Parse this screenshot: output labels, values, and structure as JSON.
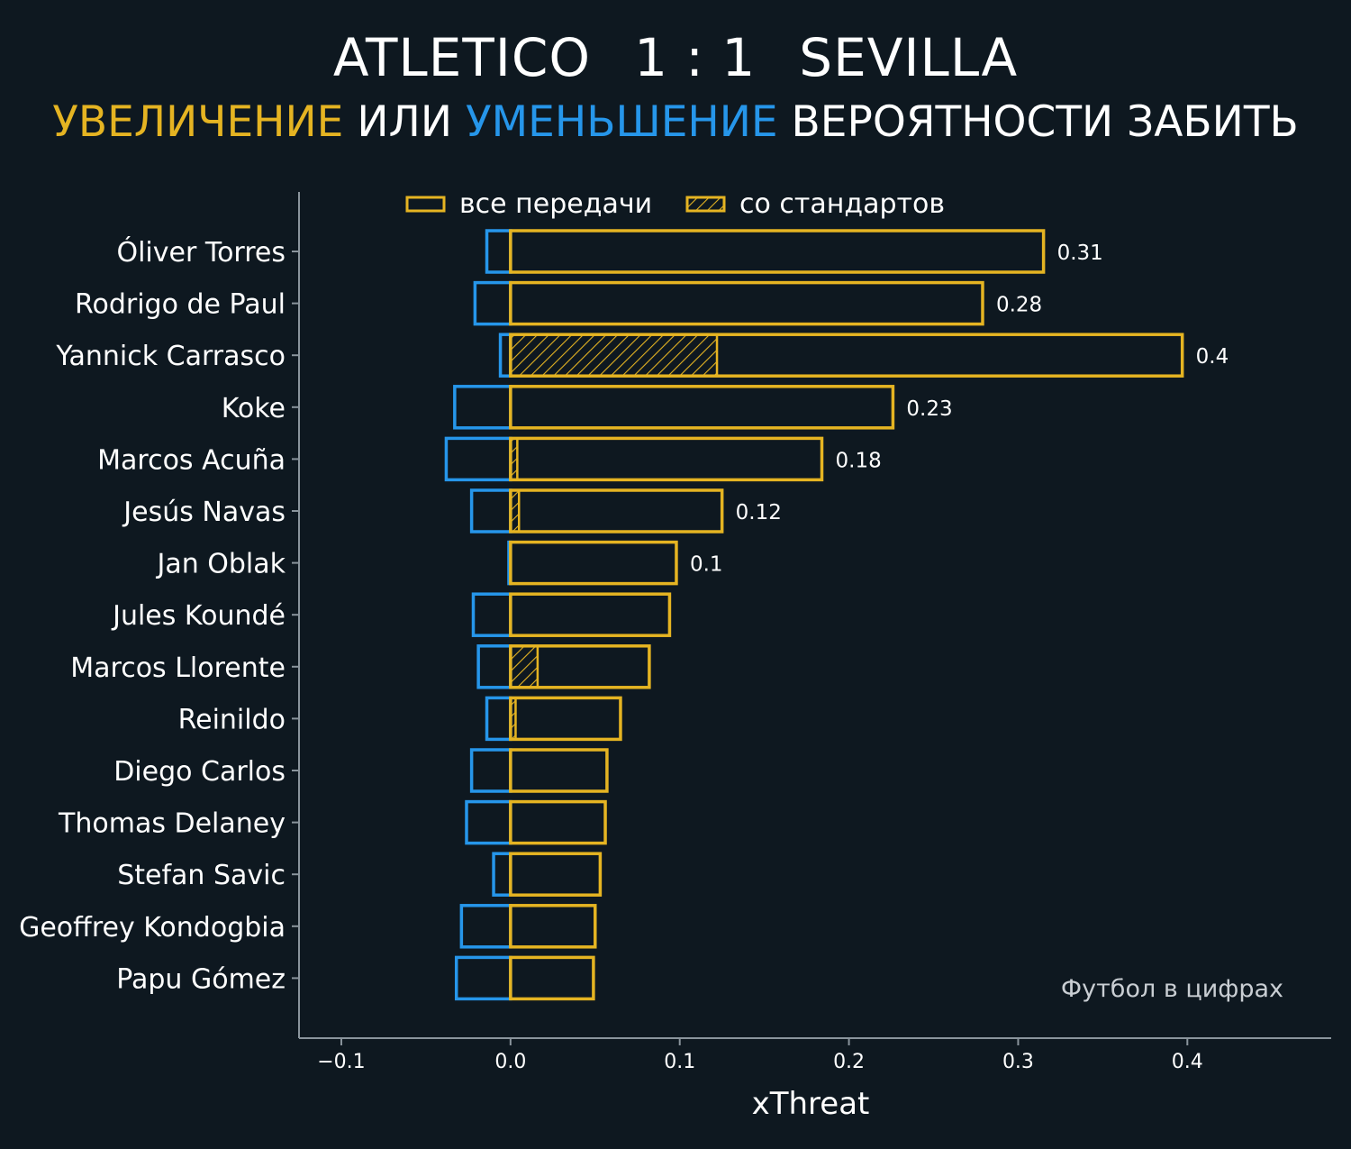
{
  "header": {
    "team_home": "ATLETICO",
    "score": "1 : 1",
    "team_away": "SEVILLA",
    "subtitle_increase": "УВЕЛИЧЕНИЕ",
    "subtitle_or": "ИЛИ",
    "subtitle_decrease": "УМЕНЬШЕНИЕ",
    "subtitle_rest": "ВЕРОЯТНОСТИ ЗАБИТЬ"
  },
  "colors": {
    "background": "#0e1820",
    "increase": "#e5b422",
    "decrease": "#2696ea",
    "axis": "#8a949c"
  },
  "watermark": "Футбол в цифрах",
  "chart_data": {
    "type": "bar",
    "orientation": "horizontal",
    "xlabel": "xThreat",
    "ylabel": "",
    "xlim": [
      -0.125,
      0.485
    ],
    "x_ticks": [
      -0.1,
      0.0,
      0.1,
      0.2,
      0.3,
      0.4
    ],
    "x_tick_labels": [
      "−0.1",
      "0.0",
      "0.1",
      "0.2",
      "0.3",
      "0.4"
    ],
    "legend": {
      "placement": "top",
      "entries": [
        {
          "label": "все передачи",
          "style": "outline"
        },
        {
          "label": "со стандартов",
          "style": "hatched"
        }
      ]
    },
    "categories": [
      "Óliver Torres",
      "Rodrigo de Paul",
      "Yannick Carrasco",
      "Koke",
      "Marcos Acuña",
      "Jesús Navas",
      "Jan Oblak",
      "Jules Koundé",
      "Marcos Llorente",
      "Reinildo",
      "Diego Carlos",
      "Thomas Delaney",
      "Stefan Savic",
      "Geoffrey Kondogbia",
      "Papu Gómez"
    ],
    "series": [
      {
        "name": "все передачи",
        "values": [
          0.315,
          0.279,
          0.397,
          0.226,
          0.184,
          0.125,
          0.098,
          0.094,
          0.082,
          0.065,
          0.057,
          0.056,
          0.053,
          0.05,
          0.049
        ]
      },
      {
        "name": "со стандартов",
        "values": [
          0,
          0,
          0.122,
          0,
          0.004,
          0.005,
          0,
          0,
          0.016,
          0.003,
          0,
          0,
          0,
          0,
          0
        ]
      },
      {
        "name": "",
        "values": [
          -0.014,
          -0.021,
          -0.006,
          -0.033,
          -0.038,
          -0.023,
          -0.001,
          -0.022,
          -0.019,
          -0.014,
          -0.023,
          -0.026,
          -0.01,
          -0.029,
          -0.032
        ]
      }
    ],
    "value_labels": [
      "0.31",
      "0.28",
      "0.4",
      "0.23",
      "0.18",
      "0.12",
      "0.1",
      "",
      "",
      "",
      "",
      "",
      "",
      "",
      ""
    ]
  }
}
